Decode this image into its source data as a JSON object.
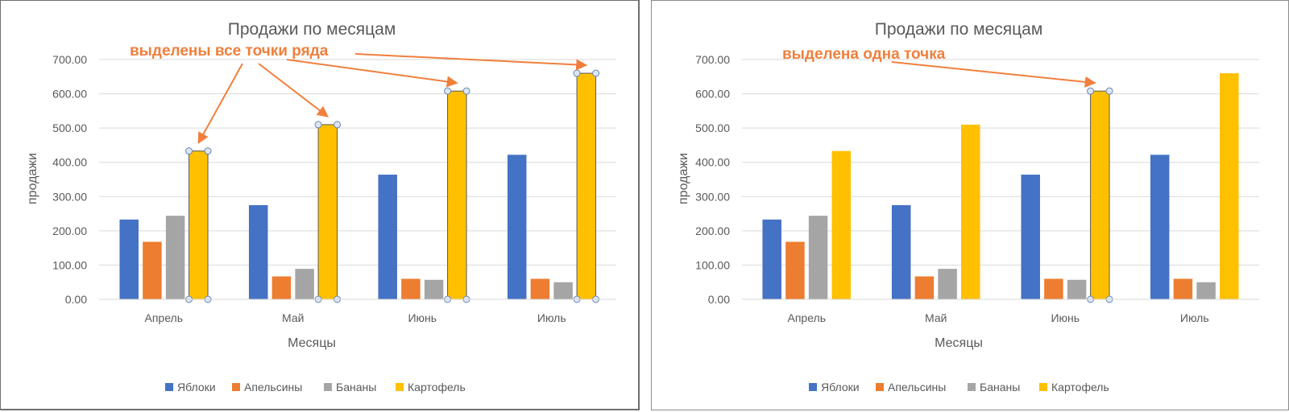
{
  "chart_data": [
    {
      "type": "bar",
      "title": "Продажи по месяцам",
      "xlabel": "Месяцы",
      "ylabel": "продажи",
      "ylim": [
        0,
        700
      ],
      "yticks": [
        "0.00",
        "100.00",
        "200.00",
        "300.00",
        "400.00",
        "500.00",
        "600.00",
        "700.00"
      ],
      "categories": [
        "Апрель",
        "Май",
        "Июнь",
        "Июль"
      ],
      "series": [
        {
          "name": "Яблоки",
          "color": "#4472c4",
          "values": [
            233,
            275,
            364,
            422
          ]
        },
        {
          "name": "Апельсины",
          "color": "#ed7d31",
          "values": [
            168,
            67,
            60,
            60
          ]
        },
        {
          "name": "Бананы",
          "color": "#a5a5a5",
          "values": [
            244,
            89,
            57,
            50
          ]
        },
        {
          "name": "Картофель",
          "color": "#ffc000",
          "values": [
            433,
            510,
            608,
            660
          ]
        }
      ],
      "grid": true,
      "legend_position": "bottom",
      "annotation": "выделены все точки ряда",
      "selection": {
        "series": "Картофель",
        "points": "all"
      }
    },
    {
      "type": "bar",
      "title": "Продажи по месяцам",
      "xlabel": "Месяцы",
      "ylabel": "продажи",
      "ylim": [
        0,
        700
      ],
      "yticks": [
        "0.00",
        "100.00",
        "200.00",
        "300.00",
        "400.00",
        "500.00",
        "600.00",
        "700.00"
      ],
      "categories": [
        "Апрель",
        "Май",
        "Июнь",
        "Июль"
      ],
      "series": [
        {
          "name": "Яблоки",
          "color": "#4472c4",
          "values": [
            233,
            275,
            364,
            422
          ]
        },
        {
          "name": "Апельсины",
          "color": "#ed7d31",
          "values": [
            168,
            67,
            60,
            60
          ]
        },
        {
          "name": "Бананы",
          "color": "#a5a5a5",
          "values": [
            244,
            89,
            57,
            50
          ]
        },
        {
          "name": "Картофель",
          "color": "#ffc000",
          "values": [
            433,
            510,
            608,
            660
          ]
        }
      ],
      "grid": true,
      "legend_position": "bottom",
      "annotation": "выделена одна точка",
      "selection": {
        "series": "Картофель",
        "points": "Июнь"
      }
    }
  ],
  "annotation_color": "#f07f3c"
}
